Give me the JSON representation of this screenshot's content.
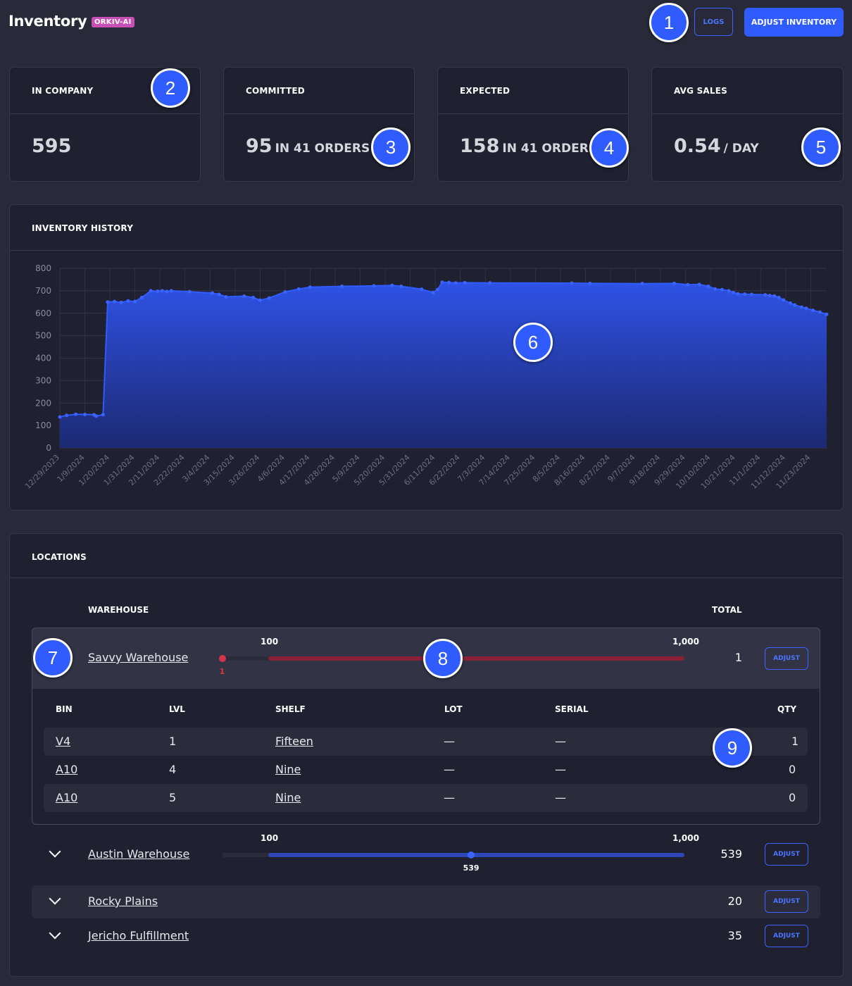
{
  "header": {
    "title": "Inventory",
    "badge": "ORKIV-AI",
    "logs_label": "LOGS",
    "adjust_label": "ADJUST INVENTORY"
  },
  "stats": {
    "in_company": {
      "label": "IN COMPANY",
      "value": "595"
    },
    "committed": {
      "label": "COMMITTED",
      "value": "95",
      "suffix": "IN 41 ORDERS"
    },
    "expected": {
      "label": "EXPECTED",
      "value": "158",
      "suffix": "IN 41 ORDERS"
    },
    "avg_sales": {
      "label": "AVG SALES",
      "value": "0.54",
      "suffix": "/ DAY"
    }
  },
  "history": {
    "title": "INVENTORY HISTORY"
  },
  "chart_data": {
    "type": "area",
    "title": "INVENTORY HISTORY",
    "ylim": [
      0,
      800
    ],
    "yticks": [
      0,
      100,
      200,
      300,
      400,
      500,
      600,
      700,
      800
    ],
    "x_ticks": [
      "12/29/2023",
      "1/9/2024",
      "1/20/2024",
      "1/31/2024",
      "2/11/2024",
      "2/22/2024",
      "3/4/2024",
      "3/15/2024",
      "3/26/2024",
      "4/6/2024",
      "4/17/2024",
      "4/28/2024",
      "5/9/2024",
      "5/20/2024",
      "5/31/2024",
      "6/11/2024",
      "6/22/2024",
      "7/3/2024",
      "7/14/2024",
      "7/25/2024",
      "8/5/2024",
      "8/16/2024",
      "8/27/2024",
      "9/7/2024",
      "9/18/2024",
      "9/29/2024",
      "10/10/2024",
      "10/21/2024",
      "11/1/2024",
      "11/12/2024",
      "11/23/2024"
    ],
    "x_start": "2023-12-29",
    "x_end": "2024-11-30",
    "color": "#2f5bff",
    "points": [
      [
        "2023-12-29",
        138
      ],
      [
        "2024-01-01",
        145
      ],
      [
        "2024-01-05",
        150
      ],
      [
        "2024-01-09",
        149
      ],
      [
        "2024-01-13",
        148
      ],
      [
        "2024-01-14",
        142
      ],
      [
        "2024-01-17",
        148
      ],
      [
        "2024-01-19",
        650
      ],
      [
        "2024-01-22",
        652
      ],
      [
        "2024-01-25",
        648
      ],
      [
        "2024-01-28",
        655
      ],
      [
        "2024-01-31",
        652
      ],
      [
        "2024-02-03",
        670
      ],
      [
        "2024-02-07",
        700
      ],
      [
        "2024-02-10",
        698
      ],
      [
        "2024-02-12",
        700
      ],
      [
        "2024-02-14",
        697
      ],
      [
        "2024-02-16",
        700
      ],
      [
        "2024-02-24",
        696
      ],
      [
        "2024-03-05",
        690
      ],
      [
        "2024-03-08",
        684
      ],
      [
        "2024-03-11",
        673
      ],
      [
        "2024-03-19",
        676
      ],
      [
        "2024-03-23",
        670
      ],
      [
        "2024-03-26",
        658
      ],
      [
        "2024-03-30",
        668
      ],
      [
        "2024-04-06",
        695
      ],
      [
        "2024-04-12",
        708
      ],
      [
        "2024-04-17",
        716
      ],
      [
        "2024-05-01",
        720
      ],
      [
        "2024-05-15",
        722
      ],
      [
        "2024-05-23",
        724
      ],
      [
        "2024-05-27",
        720
      ],
      [
        "2024-06-05",
        707
      ],
      [
        "2024-06-10",
        692
      ],
      [
        "2024-06-12",
        705
      ],
      [
        "2024-06-14",
        738
      ],
      [
        "2024-06-17",
        737
      ],
      [
        "2024-06-20",
        735
      ],
      [
        "2024-06-24",
        736
      ],
      [
        "2024-07-05",
        735
      ],
      [
        "2024-08-10",
        734
      ],
      [
        "2024-08-18",
        733
      ],
      [
        "2024-09-10",
        732
      ],
      [
        "2024-09-24",
        733
      ],
      [
        "2024-09-30",
        727
      ],
      [
        "2024-10-05",
        728
      ],
      [
        "2024-10-09",
        720
      ],
      [
        "2024-10-12",
        708
      ],
      [
        "2024-10-15",
        705
      ],
      [
        "2024-10-18",
        700
      ],
      [
        "2024-10-20",
        692
      ],
      [
        "2024-10-22",
        686
      ],
      [
        "2024-10-25",
        685
      ],
      [
        "2024-10-28",
        684
      ],
      [
        "2024-11-03",
        682
      ],
      [
        "2024-11-05",
        679
      ],
      [
        "2024-11-07",
        677
      ],
      [
        "2024-11-09",
        670
      ],
      [
        "2024-11-11",
        659
      ],
      [
        "2024-11-14",
        645
      ],
      [
        "2024-11-16",
        637
      ],
      [
        "2024-11-19",
        627
      ],
      [
        "2024-11-21",
        622
      ],
      [
        "2024-11-24",
        613
      ],
      [
        "2024-11-27",
        605
      ],
      [
        "2024-11-30",
        595
      ]
    ]
  },
  "locations": {
    "title": "LOCATIONS",
    "col_warehouse": "WAREHOUSE",
    "col_total": "TOTAL",
    "adjust_label": "ADJUST",
    "warehouses": [
      {
        "name": "Savvy Warehouse",
        "total": "1",
        "min_label": "100",
        "max_label": "1,000",
        "value_label": "1",
        "value_fraction": 0.001
      },
      {
        "name": "Austin Warehouse",
        "total": "539",
        "min_label": "100",
        "max_label": "1,000",
        "value_label": "539",
        "value_fraction": 0.539
      },
      {
        "name": "Rocky Plains",
        "total": "20"
      },
      {
        "name": "Jericho Fulfillment",
        "total": "35"
      }
    ],
    "bins": {
      "headers": {
        "bin": "BIN",
        "lvl": "LVL",
        "shelf": "SHELF",
        "lot": "LOT",
        "serial": "SERIAL",
        "qty": "QTY"
      },
      "rows": [
        {
          "bin": "V4",
          "lvl": "1",
          "shelf": "Fifteen",
          "lot": "—",
          "serial": "—",
          "qty": "1"
        },
        {
          "bin": "A10",
          "lvl": "4",
          "shelf": "Nine",
          "lot": "—",
          "serial": "—",
          "qty": "0"
        },
        {
          "bin": "A10",
          "lvl": "5",
          "shelf": "Nine",
          "lot": "—",
          "serial": "—",
          "qty": "0"
        }
      ]
    }
  },
  "markers": [
    "1",
    "2",
    "3",
    "4",
    "5",
    "6",
    "7",
    "8",
    "9"
  ]
}
